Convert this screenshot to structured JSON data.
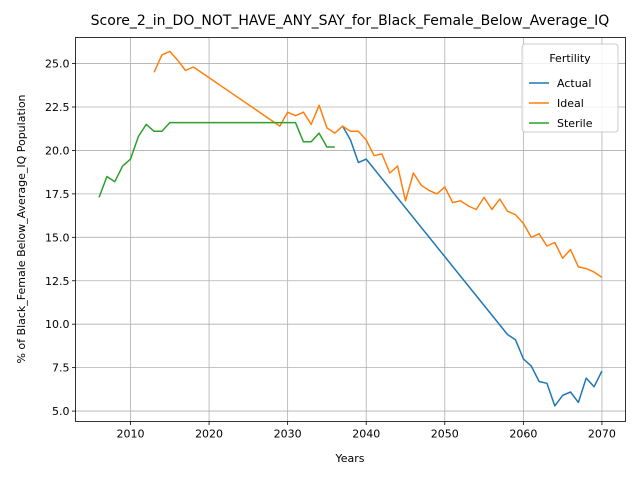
{
  "chart_data": {
    "type": "line",
    "title": "Score_2_in_DO_NOT_HAVE_ANY_SAY_for_Black_Female_Below_Average_IQ",
    "xlabel": "Years",
    "ylabel": "% of Black_Female Below_Average_IQ Population",
    "xlim": [
      2003,
      2073
    ],
    "ylim": [
      4.4,
      26.5
    ],
    "xticks": [
      2010,
      2020,
      2030,
      2040,
      2050,
      2060,
      2070
    ],
    "yticks": [
      5.0,
      7.5,
      10.0,
      12.5,
      15.0,
      17.5,
      20.0,
      22.5,
      25.0
    ],
    "ytick_labels": [
      "5.0",
      "7.5",
      "10.0",
      "12.5",
      "15.0",
      "17.5",
      "20.0",
      "22.5",
      "25.0"
    ],
    "grid": true,
    "legend": {
      "title": "Fertility",
      "position": "top-right"
    },
    "series": [
      {
        "name": "Actual",
        "color": "#1f77b4",
        "x": [
          2037,
          2038,
          2039,
          2040,
          2058,
          2059,
          2060,
          2061,
          2062,
          2063,
          2064,
          2065,
          2066,
          2067,
          2068,
          2069,
          2070
        ],
        "y": [
          21.4,
          20.6,
          19.3,
          19.5,
          9.4,
          9.1,
          8.0,
          7.6,
          6.7,
          6.6,
          5.3,
          5.9,
          6.1,
          5.5,
          6.9,
          6.4,
          7.3
        ]
      },
      {
        "name": "Ideal",
        "color": "#ff7f0e",
        "x": [
          2013,
          2014,
          2015,
          2016,
          2017,
          2018,
          2029,
          2030,
          2031,
          2032,
          2033,
          2034,
          2035,
          2036,
          2037,
          2038,
          2039,
          2040,
          2041,
          2042,
          2043,
          2044,
          2045,
          2046,
          2047,
          2048,
          2049,
          2050,
          2051,
          2052,
          2053,
          2054,
          2055,
          2056,
          2057,
          2058,
          2059,
          2060,
          2061,
          2062,
          2063,
          2064,
          2065,
          2066,
          2067,
          2068,
          2069,
          2070
        ],
        "y": [
          24.5,
          25.5,
          25.7,
          25.2,
          24.6,
          24.8,
          21.4,
          22.2,
          22.0,
          22.2,
          21.5,
          22.6,
          21.3,
          21.0,
          21.4,
          21.1,
          21.1,
          20.6,
          19.7,
          19.8,
          18.7,
          19.1,
          17.1,
          18.7,
          18.0,
          17.7,
          17.5,
          17.9,
          17.0,
          17.1,
          16.8,
          16.6,
          17.3,
          16.6,
          17.2,
          16.5,
          16.3,
          15.8,
          15.0,
          15.2,
          14.5,
          14.7,
          13.8,
          14.3,
          13.3,
          13.2,
          13.0,
          12.7
        ]
      },
      {
        "name": "Sterile",
        "color": "#2ca02c",
        "x": [
          2006,
          2007,
          2008,
          2009,
          2010,
          2011,
          2012,
          2013,
          2014,
          2015,
          2016,
          2017,
          2018,
          2019,
          2020,
          2021,
          2022,
          2023,
          2024,
          2025,
          2026,
          2027,
          2028,
          2029,
          2030,
          2031,
          2032,
          2033,
          2034,
          2035,
          2036
        ],
        "y": [
          17.3,
          18.5,
          18.2,
          19.1,
          19.5,
          20.8,
          21.5,
          21.1,
          21.1,
          21.6,
          21.6,
          21.6,
          21.6,
          21.6,
          21.6,
          21.6,
          21.6,
          21.6,
          21.6,
          21.6,
          21.6,
          21.6,
          21.6,
          21.6,
          21.6,
          21.6,
          20.5,
          20.5,
          21.0,
          20.2,
          20.2
        ]
      }
    ]
  }
}
